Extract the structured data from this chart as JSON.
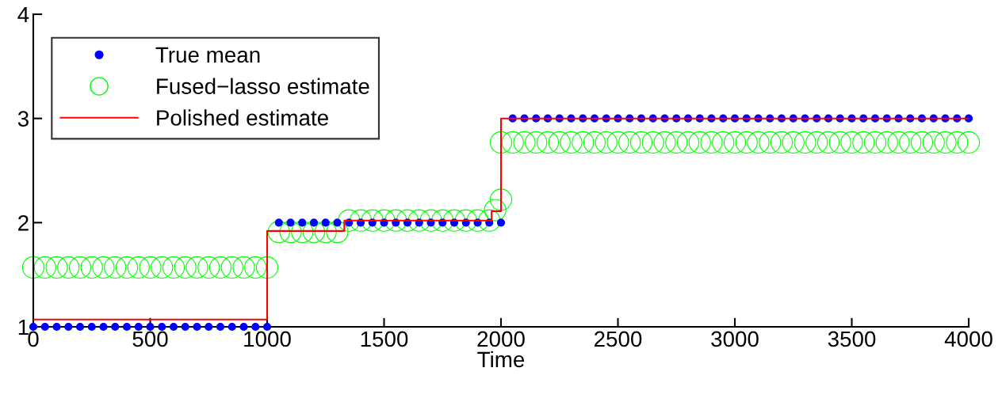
{
  "chart_data": {
    "type": "scatter",
    "xlabel": "Time",
    "xlim": [
      0,
      4000
    ],
    "ylim": [
      1,
      4
    ],
    "xticks": [
      0,
      500,
      1000,
      1500,
      2000,
      2500,
      3000,
      3500,
      4000
    ],
    "yticks": [
      1,
      2,
      3,
      4
    ],
    "grid": false,
    "legend": "top left",
    "series": [
      {
        "name": "True mean",
        "marker": "dot",
        "color": "#0000ff",
        "x": [
          0,
          50,
          100,
          150,
          200,
          250,
          300,
          350,
          400,
          450,
          500,
          550,
          600,
          650,
          700,
          750,
          800,
          850,
          900,
          950,
          1000,
          1050,
          1100,
          1150,
          1200,
          1250,
          1300,
          1350,
          1400,
          1450,
          1500,
          1550,
          1600,
          1650,
          1700,
          1750,
          1800,
          1850,
          1900,
          1950,
          2000,
          2050,
          2100,
          2150,
          2200,
          2250,
          2300,
          2350,
          2400,
          2450,
          2500,
          2550,
          2600,
          2650,
          2700,
          2750,
          2800,
          2850,
          2900,
          2950,
          3000,
          3050,
          3100,
          3150,
          3200,
          3250,
          3300,
          3350,
          3400,
          3450,
          3500,
          3550,
          3600,
          3650,
          3700,
          3750,
          3800,
          3850,
          3900,
          3950,
          4000
        ],
        "values": [
          1,
          1,
          1,
          1,
          1,
          1,
          1,
          1,
          1,
          1,
          1,
          1,
          1,
          1,
          1,
          1,
          1,
          1,
          1,
          1,
          1,
          2,
          2,
          2,
          2,
          2,
          2,
          2,
          2,
          2,
          2,
          2,
          2,
          2,
          2,
          2,
          2,
          2,
          2,
          2,
          2,
          3,
          3,
          3,
          3,
          3,
          3,
          3,
          3,
          3,
          3,
          3,
          3,
          3,
          3,
          3,
          3,
          3,
          3,
          3,
          3,
          3,
          3,
          3,
          3,
          3,
          3,
          3,
          3,
          3,
          3,
          3,
          3,
          3,
          3,
          3,
          3,
          3,
          3,
          3,
          3
        ]
      },
      {
        "name": "Fused−lasso estimate",
        "marker": "circle",
        "color": "#00ff00",
        "x": [
          0,
          50,
          100,
          150,
          200,
          250,
          300,
          350,
          400,
          450,
          500,
          550,
          600,
          650,
          700,
          750,
          800,
          850,
          900,
          950,
          1000,
          1050,
          1100,
          1150,
          1200,
          1250,
          1300,
          1350,
          1400,
          1450,
          1500,
          1550,
          1600,
          1650,
          1700,
          1750,
          1800,
          1850,
          1900,
          1950,
          1975,
          2000,
          2000,
          2050,
          2100,
          2150,
          2200,
          2250,
          2300,
          2350,
          2400,
          2450,
          2500,
          2550,
          2600,
          2650,
          2700,
          2750,
          2800,
          2850,
          2900,
          2950,
          3000,
          3050,
          3100,
          3150,
          3200,
          3250,
          3300,
          3350,
          3400,
          3450,
          3500,
          3550,
          3600,
          3650,
          3700,
          3750,
          3800,
          3850,
          3900,
          3950,
          4000
        ],
        "values": [
          1.57,
          1.57,
          1.57,
          1.57,
          1.57,
          1.57,
          1.57,
          1.57,
          1.57,
          1.57,
          1.57,
          1.57,
          1.57,
          1.57,
          1.57,
          1.57,
          1.57,
          1.57,
          1.57,
          1.57,
          1.57,
          1.91,
          1.91,
          1.91,
          1.91,
          1.91,
          1.91,
          2.02,
          2.02,
          2.02,
          2.02,
          2.02,
          2.02,
          2.02,
          2.02,
          2.02,
          2.02,
          2.02,
          2.02,
          2.02,
          2.12,
          2.22,
          2.77,
          2.77,
          2.77,
          2.77,
          2.77,
          2.77,
          2.77,
          2.77,
          2.77,
          2.77,
          2.77,
          2.77,
          2.77,
          2.77,
          2.77,
          2.77,
          2.77,
          2.77,
          2.77,
          2.77,
          2.77,
          2.77,
          2.77,
          2.77,
          2.77,
          2.77,
          2.77,
          2.77,
          2.77,
          2.77,
          2.77,
          2.77,
          2.77,
          2.77,
          2.77,
          2.77,
          2.77,
          2.77,
          2.77,
          2.77,
          2.77
        ]
      },
      {
        "name": "Polished estimate",
        "type": "step",
        "marker": "none",
        "color": "#ff0000",
        "x": [
          0,
          1000,
          1330,
          1960,
          2000,
          4000
        ],
        "values": [
          1.07,
          1.92,
          2.02,
          2.11,
          3.0,
          3.0
        ]
      }
    ]
  }
}
